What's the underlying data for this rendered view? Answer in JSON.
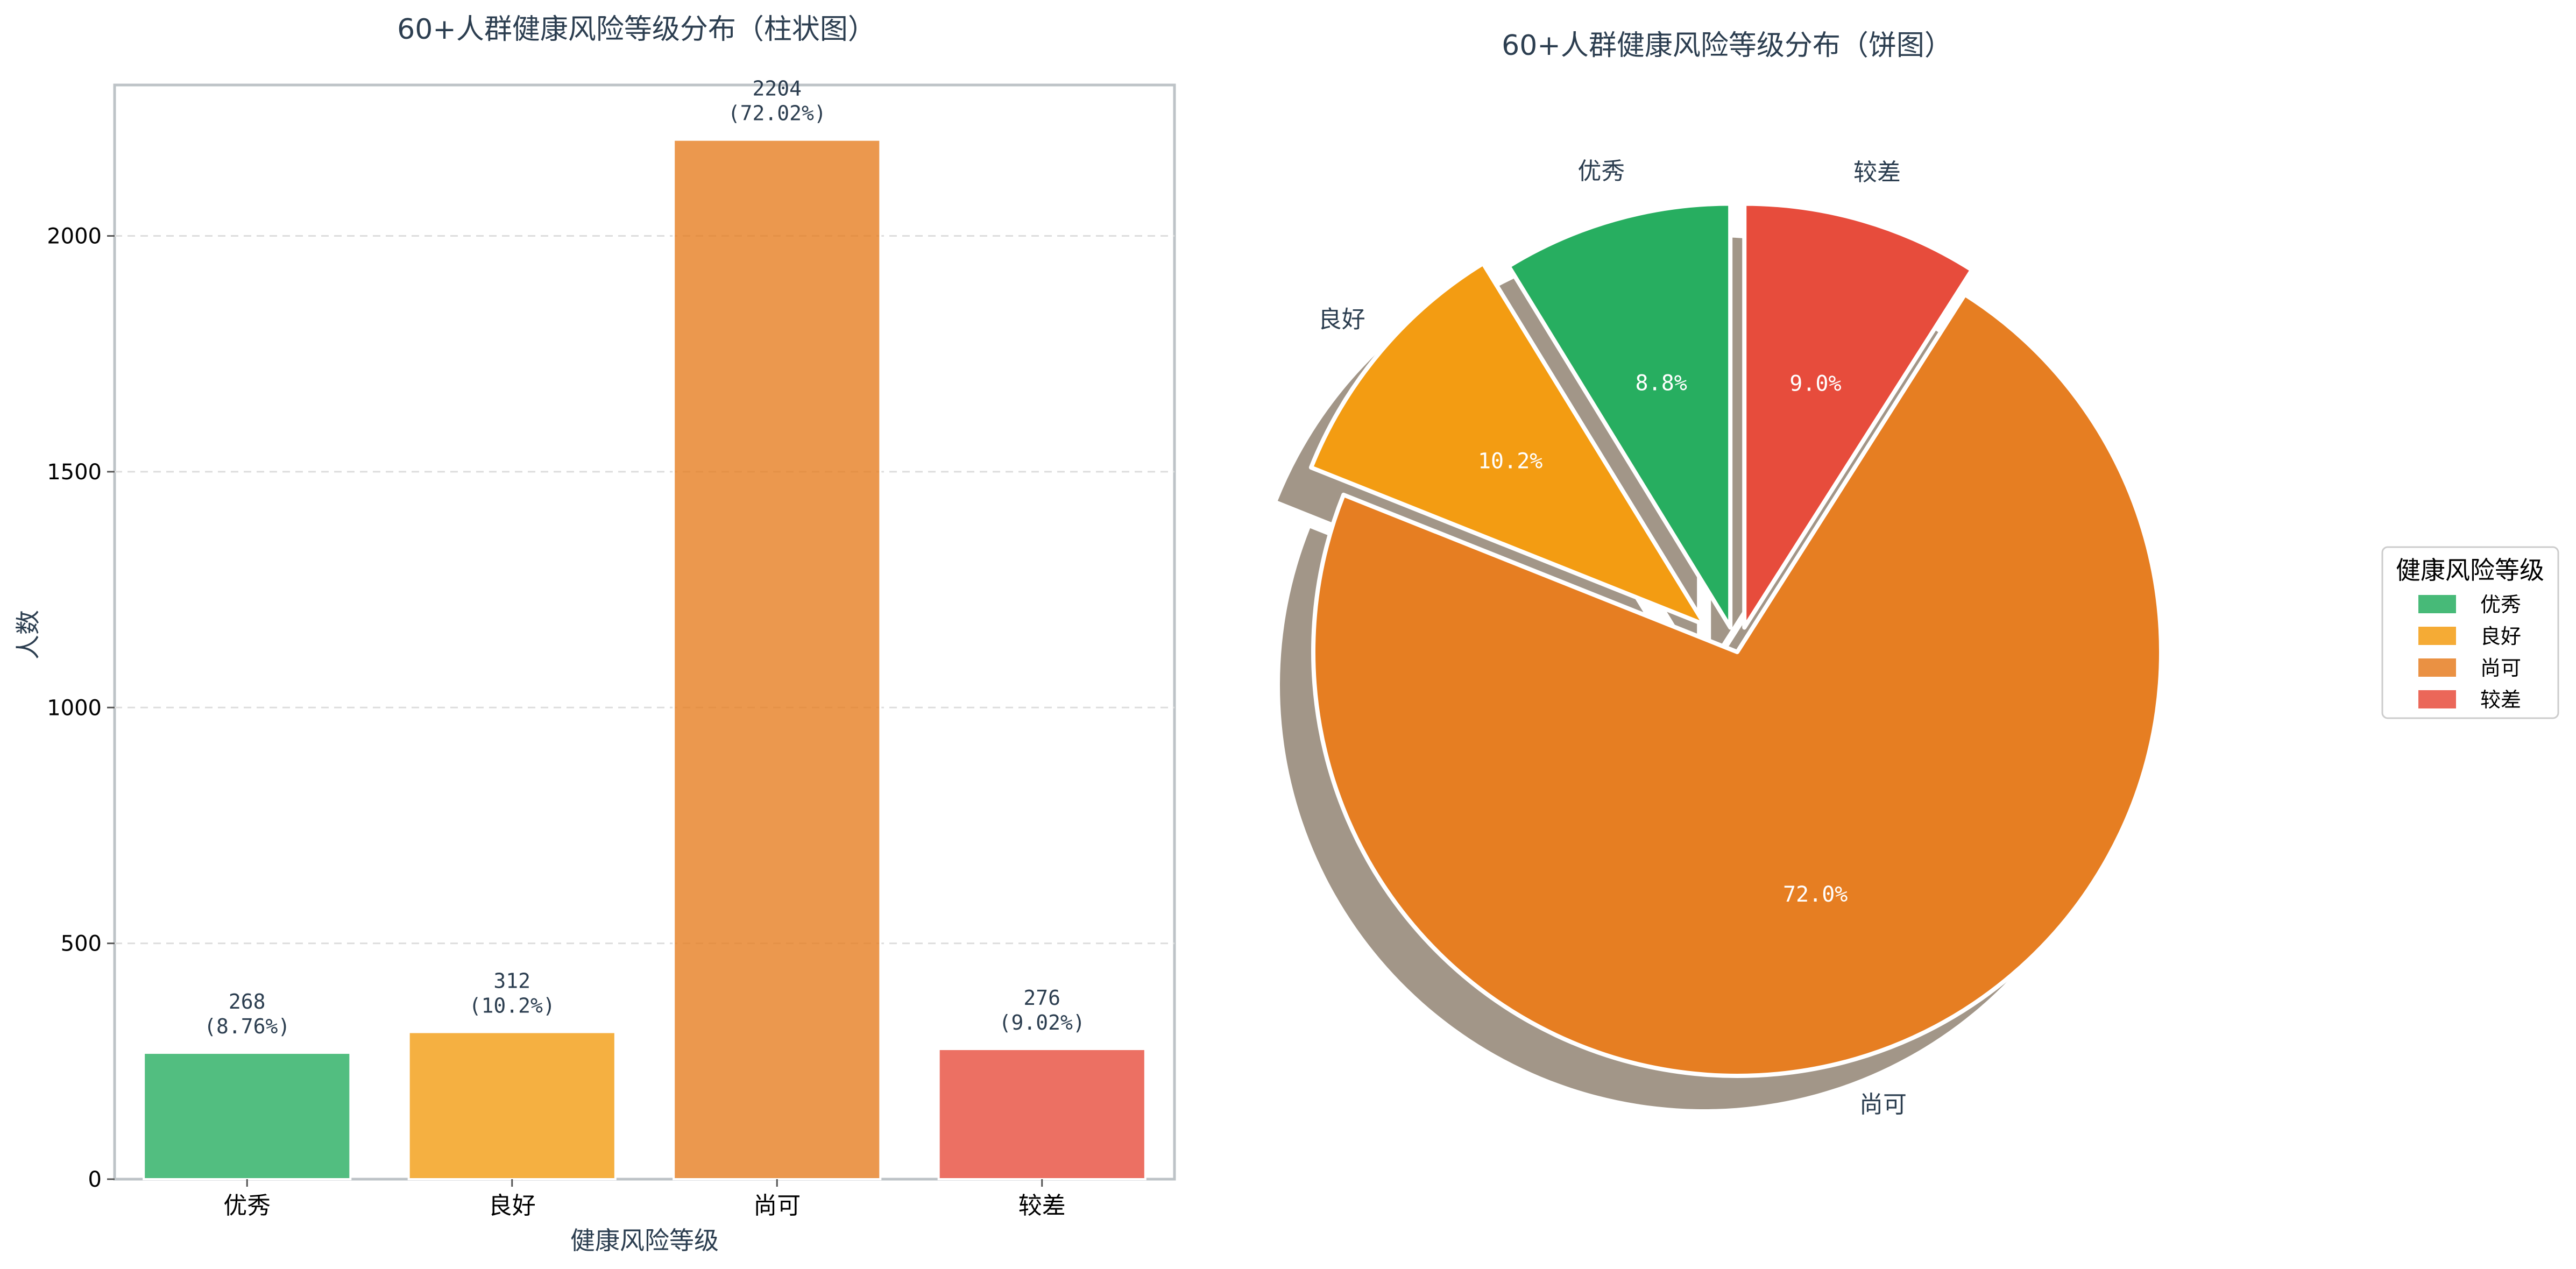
{
  "chart_data": [
    {
      "type": "bar",
      "title": "60+人群健康风险等级分布（柱状图）",
      "xlabel": "健康风险等级",
      "ylabel": "人数",
      "categories": [
        "优秀",
        "良好",
        "尚可",
        "较差"
      ],
      "values": [
        268,
        312,
        2204,
        276
      ],
      "value_labels": [
        "268\n(8.76%)",
        "312\n(10.2%)",
        "2204\n(72.02%)",
        "276\n(9.02%)"
      ],
      "colors": [
        "#27ae60",
        "#f39c12",
        "#e67e22",
        "#e74c3c"
      ],
      "ylim": [
        0,
        2320
      ],
      "yticks": [
        0,
        500,
        1000,
        1500,
        2000
      ],
      "grid": true
    },
    {
      "type": "pie",
      "title": "60+人群健康风险等级分布（饼图）",
      "labels": [
        "优秀",
        "良好",
        "尚可",
        "较差"
      ],
      "values": [
        268,
        312,
        2204,
        276
      ],
      "percent_labels": [
        "8.8%",
        "10.2%",
        "72.0%",
        "9.0%"
      ],
      "colors": [
        "#27ae60",
        "#f39c12",
        "#e67e22",
        "#e74c3c"
      ],
      "shadow": true,
      "legend": {
        "title": "健康风险等级",
        "entries": [
          "优秀",
          "良好",
          "尚可",
          "较差"
        ],
        "placement": "right"
      }
    }
  ]
}
